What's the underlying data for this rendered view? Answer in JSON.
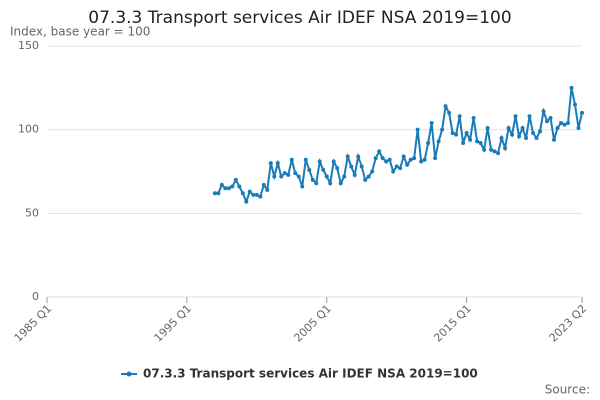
{
  "chart_data": {
    "type": "line",
    "title": "07.3.3 Transport services Air IDEF NSA 2019=100",
    "subtitle": "Index, base year = 100",
    "source": "Source:",
    "categories": [
      "1985 Q1",
      null,
      null,
      null,
      null,
      null,
      null,
      null,
      null,
      null,
      null,
      null,
      null,
      null,
      null,
      null,
      null,
      null,
      null,
      null,
      null,
      null,
      null,
      null,
      null,
      null,
      null,
      null,
      null,
      null,
      null,
      null,
      null,
      null,
      null,
      null,
      null,
      null,
      null,
      null,
      "1995 Q1",
      null,
      null,
      null,
      null,
      null,
      null,
      null,
      null,
      null,
      null,
      null,
      null,
      null,
      null,
      null,
      null,
      null,
      null,
      null,
      null,
      null,
      null,
      null,
      null,
      null,
      null,
      null,
      null,
      null,
      null,
      null,
      null,
      null,
      null,
      null,
      null,
      null,
      null,
      null,
      "2005 Q1",
      null,
      null,
      null,
      null,
      null,
      null,
      null,
      null,
      null,
      null,
      null,
      null,
      null,
      null,
      null,
      null,
      null,
      null,
      null,
      null,
      null,
      null,
      null,
      null,
      null,
      null,
      null,
      null,
      null,
      null,
      null,
      null,
      null,
      null,
      null,
      null,
      null,
      null,
      null,
      "2015 Q1",
      null,
      null,
      null,
      null,
      null,
      null,
      null,
      null,
      null,
      null,
      null,
      null,
      null,
      null,
      null,
      null,
      null,
      null,
      null,
      null,
      null,
      null,
      null,
      null,
      null,
      null,
      null,
      null,
      null,
      null,
      null,
      null,
      "2023 Q2"
    ],
    "series": [
      {
        "name": "07.3.3 Transport services Air IDEF NSA 2019=100",
        "color": "#1a7bb9",
        "values": [
          null,
          null,
          null,
          null,
          null,
          null,
          null,
          null,
          null,
          null,
          null,
          null,
          null,
          null,
          null,
          null,
          null,
          null,
          null,
          null,
          null,
          null,
          null,
          null,
          null,
          null,
          null,
          null,
          null,
          null,
          null,
          null,
          null,
          null,
          null,
          null,
          null,
          null,
          null,
          null,
          null,
          null,
          null,
          null,
          null,
          null,
          null,
          null,
          62,
          62,
          67,
          65,
          65,
          66,
          70,
          66,
          62,
          57,
          63,
          61,
          61,
          60,
          67,
          64,
          80,
          72,
          80,
          72,
          74,
          73,
          82,
          74,
          72,
          66,
          82,
          76,
          70,
          68,
          81,
          76,
          72,
          68,
          81,
          77,
          68,
          72,
          84,
          78,
          73,
          84,
          78,
          70,
          72,
          75,
          83,
          87,
          83,
          81,
          82,
          75,
          78,
          77,
          84,
          79,
          82,
          83,
          100,
          81,
          82,
          92,
          104,
          83,
          93,
          100,
          114,
          110,
          98,
          97,
          108,
          92,
          98,
          94,
          107,
          93,
          92,
          88,
          101,
          88,
          87,
          86,
          95,
          89,
          101,
          97,
          108,
          96,
          101,
          95,
          108,
          98,
          95,
          99,
          111,
          105,
          107,
          94,
          101,
          104,
          103,
          104,
          125,
          115,
          101,
          110
        ]
      }
    ],
    "ylim": [
      0,
      150
    ],
    "yticks": [
      0,
      50,
      100,
      150
    ],
    "grid": true,
    "legend": "bottom"
  }
}
